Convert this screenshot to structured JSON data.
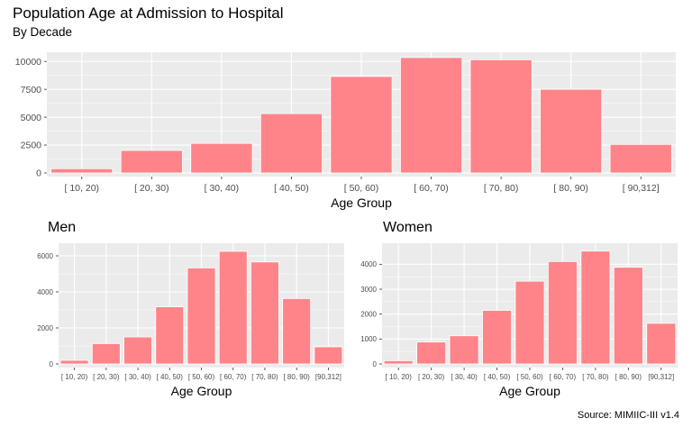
{
  "title": "Population Age at Admission to Hospital",
  "subtitle": "By Decade",
  "caption": "Source: MIMIIC-III v1.4",
  "colors": {
    "bar": "#fe8489",
    "panel": "#ebebeb",
    "grid": "#ffffff"
  },
  "chart_data": [
    {
      "type": "bar",
      "title": "",
      "xlabel": "Age Group",
      "ylabel": "",
      "categories": [
        "[ 10, 20)",
        "[ 20, 30)",
        "[ 30, 40)",
        "[ 40, 50)",
        "[ 50, 60)",
        "[ 60, 70)",
        "[ 70, 80)",
        "[ 80, 90)",
        "[ 90,312]"
      ],
      "values": [
        380,
        2020,
        2650,
        5320,
        8650,
        10350,
        10150,
        7500,
        2560
      ],
      "ylim": [
        0,
        10500
      ],
      "yticks": [
        0,
        2500,
        5000,
        7500,
        10000
      ],
      "grid": true,
      "legend": "none"
    },
    {
      "type": "bar",
      "title": "Men",
      "xlabel": "Age Group",
      "ylabel": "",
      "categories": [
        "[ 10, 20)",
        "[ 20, 30)",
        "[ 30, 40)",
        "[ 40, 50)",
        "[ 50, 60)",
        "[ 60, 70)",
        "[ 70, 80)",
        "[ 80, 90)",
        "[90,312]"
      ],
      "values": [
        200,
        1130,
        1500,
        3170,
        5330,
        6250,
        5660,
        3630,
        950
      ],
      "ylim": [
        0,
        6500
      ],
      "yticks": [
        0,
        2000,
        4000,
        6000
      ],
      "grid": true,
      "legend": "none"
    },
    {
      "type": "bar",
      "title": "Women",
      "xlabel": "Age Group",
      "ylabel": "",
      "categories": [
        "[ 10, 20)",
        "[ 20, 30)",
        "[ 30, 40)",
        "[ 40, 50)",
        "[ 50, 60)",
        "[ 60, 70)",
        "[ 70, 80)",
        "[ 80, 90)",
        "[90,312]"
      ],
      "values": [
        130,
        880,
        1130,
        2150,
        3320,
        4110,
        4530,
        3880,
        1630
      ],
      "ylim": [
        0,
        4700
      ],
      "yticks": [
        0,
        1000,
        2000,
        3000,
        4000
      ],
      "grid": true,
      "legend": "none"
    }
  ]
}
